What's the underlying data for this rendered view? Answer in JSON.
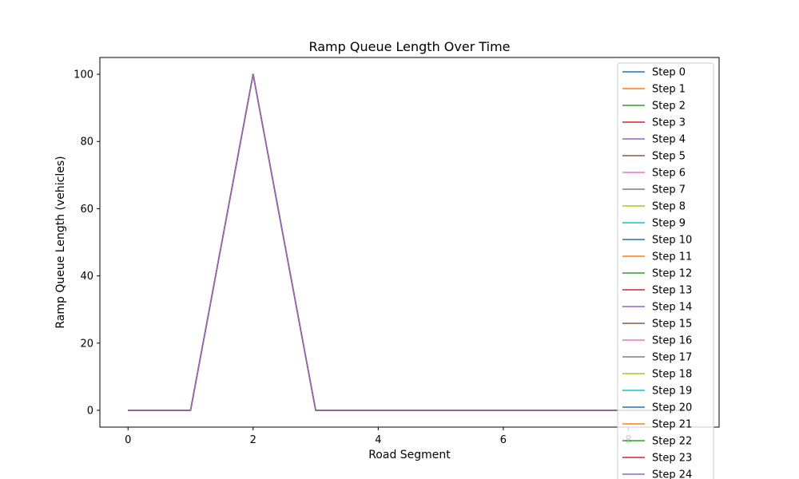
{
  "chart_data": {
    "type": "line",
    "title": "Ramp Queue Length Over Time",
    "xlabel": "Road Segment",
    "ylabel": "Ramp Queue Length (vehicles)",
    "xlim": [
      -0.45,
      9.45
    ],
    "ylim": [
      -5,
      105
    ],
    "xticks": [
      0,
      2,
      4,
      6,
      8
    ],
    "yticks": [
      0,
      20,
      40,
      60,
      80,
      100
    ],
    "grid": false,
    "legend_position": "top-right",
    "x": [
      0,
      1,
      2,
      3,
      4,
      5,
      6,
      7,
      8,
      9
    ],
    "colors": [
      "#1f77b4",
      "#ff7f0e",
      "#2ca02c",
      "#d62728",
      "#9467bd",
      "#8c564b",
      "#e377c2",
      "#7f7f7f",
      "#bcbd22",
      "#17becf"
    ],
    "series": [
      {
        "name": "Step 0",
        "values": [
          0,
          0,
          100,
          0,
          0,
          0,
          0,
          0,
          0,
          0
        ]
      },
      {
        "name": "Step 1",
        "values": [
          0,
          0,
          100,
          0,
          0,
          0,
          0,
          0,
          0,
          0
        ]
      },
      {
        "name": "Step 2",
        "values": [
          0,
          0,
          100,
          0,
          0,
          0,
          0,
          0,
          0,
          0
        ]
      },
      {
        "name": "Step 3",
        "values": [
          0,
          0,
          100,
          0,
          0,
          0,
          0,
          0,
          0,
          0
        ]
      },
      {
        "name": "Step 4",
        "values": [
          0,
          0,
          100,
          0,
          0,
          0,
          0,
          0,
          0,
          0
        ]
      },
      {
        "name": "Step 5",
        "values": [
          0,
          0,
          100,
          0,
          0,
          0,
          0,
          0,
          0,
          0
        ]
      },
      {
        "name": "Step 6",
        "values": [
          0,
          0,
          100,
          0,
          0,
          0,
          0,
          0,
          0,
          0
        ]
      },
      {
        "name": "Step 7",
        "values": [
          0,
          0,
          100,
          0,
          0,
          0,
          0,
          0,
          0,
          0
        ]
      },
      {
        "name": "Step 8",
        "values": [
          0,
          0,
          100,
          0,
          0,
          0,
          0,
          0,
          0,
          0
        ]
      },
      {
        "name": "Step 9",
        "values": [
          0,
          0,
          100,
          0,
          0,
          0,
          0,
          0,
          0,
          0
        ]
      },
      {
        "name": "Step 10",
        "values": [
          0,
          0,
          100,
          0,
          0,
          0,
          0,
          0,
          0,
          0
        ]
      },
      {
        "name": "Step 11",
        "values": [
          0,
          0,
          100,
          0,
          0,
          0,
          0,
          0,
          0,
          0
        ]
      },
      {
        "name": "Step 12",
        "values": [
          0,
          0,
          100,
          0,
          0,
          0,
          0,
          0,
          0,
          0
        ]
      },
      {
        "name": "Step 13",
        "values": [
          0,
          0,
          100,
          0,
          0,
          0,
          0,
          0,
          0,
          0
        ]
      },
      {
        "name": "Step 14",
        "values": [
          0,
          0,
          100,
          0,
          0,
          0,
          0,
          0,
          0,
          0
        ]
      },
      {
        "name": "Step 15",
        "values": [
          0,
          0,
          100,
          0,
          0,
          0,
          0,
          0,
          0,
          0
        ]
      },
      {
        "name": "Step 16",
        "values": [
          0,
          0,
          100,
          0,
          0,
          0,
          0,
          0,
          0,
          0
        ]
      },
      {
        "name": "Step 17",
        "values": [
          0,
          0,
          100,
          0,
          0,
          0,
          0,
          0,
          0,
          0
        ]
      },
      {
        "name": "Step 18",
        "values": [
          0,
          0,
          100,
          0,
          0,
          0,
          0,
          0,
          0,
          0
        ]
      },
      {
        "name": "Step 19",
        "values": [
          0,
          0,
          100,
          0,
          0,
          0,
          0,
          0,
          0,
          0
        ]
      },
      {
        "name": "Step 20",
        "values": [
          0,
          0,
          100,
          0,
          0,
          0,
          0,
          0,
          0,
          0
        ]
      },
      {
        "name": "Step 21",
        "values": [
          0,
          0,
          100,
          0,
          0,
          0,
          0,
          0,
          0,
          0
        ]
      },
      {
        "name": "Step 22",
        "values": [
          0,
          0,
          100,
          0,
          0,
          0,
          0,
          0,
          0,
          0
        ]
      },
      {
        "name": "Step 23",
        "values": [
          0,
          0,
          100,
          0,
          0,
          0,
          0,
          0,
          0,
          0
        ]
      },
      {
        "name": "Step 24",
        "values": [
          0,
          0,
          100,
          0,
          0,
          0,
          0,
          0,
          0,
          0
        ]
      }
    ]
  }
}
